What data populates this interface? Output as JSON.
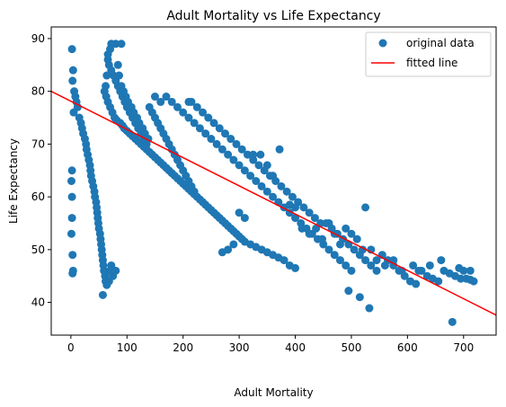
{
  "chart_data": {
    "type": "scatter",
    "title": "Adult Mortality vs Life Expectancy",
    "xlabel": "Adult Mortality",
    "ylabel": "Life Expectancy",
    "xlim": [
      -35,
      758
    ],
    "ylim": [
      33.8,
      92.2
    ],
    "xticks": [
      0,
      100,
      200,
      300,
      400,
      500,
      600,
      700
    ],
    "yticks": [
      40,
      50,
      60,
      70,
      80,
      90
    ],
    "grid": false,
    "legend_position": "top-right",
    "series": [
      {
        "name": "original data",
        "kind": "points",
        "color": "#1f77b4",
        "points": [
          [
            2,
            88
          ],
          [
            4,
            84
          ],
          [
            3,
            82
          ],
          [
            6,
            80
          ],
          [
            8,
            79
          ],
          [
            10,
            78
          ],
          [
            12,
            77
          ],
          [
            5,
            76
          ],
          [
            15,
            75
          ],
          [
            18,
            74
          ],
          [
            20,
            73
          ],
          [
            22,
            72
          ],
          [
            25,
            71
          ],
          [
            27,
            70
          ],
          [
            28,
            69
          ],
          [
            30,
            68
          ],
          [
            32,
            67
          ],
          [
            34,
            66
          ],
          [
            35,
            65
          ],
          [
            36,
            64
          ],
          [
            38,
            63
          ],
          [
            40,
            62
          ],
          [
            42,
            61
          ],
          [
            43,
            60
          ],
          [
            45,
            59
          ],
          [
            46,
            58
          ],
          [
            47,
            57
          ],
          [
            48,
            56
          ],
          [
            49,
            55
          ],
          [
            50,
            54
          ],
          [
            52,
            53
          ],
          [
            53,
            52
          ],
          [
            54,
            51
          ],
          [
            55,
            50
          ],
          [
            56,
            49
          ],
          [
            57,
            48
          ],
          [
            58,
            47
          ],
          [
            59,
            46
          ],
          [
            61,
            45
          ],
          [
            62,
            44
          ],
          [
            64,
            43.3
          ],
          [
            57,
            41.4
          ],
          [
            3,
            49
          ],
          [
            4,
            46
          ],
          [
            2,
            65
          ],
          [
            1,
            63
          ],
          [
            2,
            60
          ],
          [
            2,
            56
          ],
          [
            1,
            53
          ],
          [
            3,
            45.5
          ],
          [
            70,
            46
          ],
          [
            75,
            45
          ],
          [
            72,
            47
          ],
          [
            80,
            46
          ],
          [
            68,
            44
          ],
          [
            90,
            89
          ],
          [
            80,
            89
          ],
          [
            72,
            89
          ],
          [
            70,
            88
          ],
          [
            66,
            86
          ],
          [
            64,
            83
          ],
          [
            62,
            81
          ],
          [
            60,
            80
          ],
          [
            63,
            79
          ],
          [
            66,
            78
          ],
          [
            70,
            77
          ],
          [
            74,
            76
          ],
          [
            78,
            75
          ],
          [
            82,
            74.5
          ],
          [
            88,
            74
          ],
          [
            92,
            73.5
          ],
          [
            95,
            73
          ],
          [
            100,
            72.5
          ],
          [
            105,
            72
          ],
          [
            110,
            71.5
          ],
          [
            115,
            71
          ],
          [
            120,
            70.5
          ],
          [
            125,
            70
          ],
          [
            130,
            69.5
          ],
          [
            135,
            69
          ],
          [
            140,
            68.5
          ],
          [
            145,
            68
          ],
          [
            150,
            67.5
          ],
          [
            155,
            67
          ],
          [
            160,
            66.5
          ],
          [
            165,
            66
          ],
          [
            170,
            65.5
          ],
          [
            175,
            65
          ],
          [
            180,
            64.5
          ],
          [
            185,
            64
          ],
          [
            190,
            63.5
          ],
          [
            195,
            63
          ],
          [
            200,
            62.5
          ],
          [
            205,
            62
          ],
          [
            210,
            61.5
          ],
          [
            215,
            61
          ],
          [
            220,
            60.5
          ],
          [
            225,
            60
          ],
          [
            230,
            59.5
          ],
          [
            235,
            59
          ],
          [
            240,
            58.5
          ],
          [
            245,
            58
          ],
          [
            250,
            57.5
          ],
          [
            255,
            57
          ],
          [
            260,
            56.5
          ],
          [
            265,
            56
          ],
          [
            270,
            55.5
          ],
          [
            275,
            55
          ],
          [
            280,
            54.5
          ],
          [
            285,
            54
          ],
          [
            290,
            53.5
          ],
          [
            295,
            53
          ],
          [
            300,
            52.5
          ],
          [
            305,
            52
          ],
          [
            310,
            51.5
          ],
          [
            320,
            51
          ],
          [
            330,
            50.5
          ],
          [
            340,
            50
          ],
          [
            350,
            49.5
          ],
          [
            360,
            49
          ],
          [
            370,
            48.5
          ],
          [
            380,
            48
          ],
          [
            390,
            47
          ],
          [
            400,
            46.5
          ],
          [
            150,
            79
          ],
          [
            160,
            78
          ],
          [
            170,
            79
          ],
          [
            180,
            78
          ],
          [
            190,
            77
          ],
          [
            200,
            76
          ],
          [
            210,
            75
          ],
          [
            220,
            74
          ],
          [
            230,
            73
          ],
          [
            240,
            72
          ],
          [
            250,
            71
          ],
          [
            260,
            70
          ],
          [
            270,
            69
          ],
          [
            280,
            68
          ],
          [
            290,
            67
          ],
          [
            300,
            66
          ],
          [
            310,
            65
          ],
          [
            320,
            64
          ],
          [
            330,
            63
          ],
          [
            340,
            62
          ],
          [
            350,
            61
          ],
          [
            360,
            60
          ],
          [
            370,
            59
          ],
          [
            380,
            58
          ],
          [
            390,
            57
          ],
          [
            400,
            56
          ],
          [
            410,
            55
          ],
          [
            420,
            54
          ],
          [
            430,
            53
          ],
          [
            440,
            52
          ],
          [
            450,
            51
          ],
          [
            460,
            50
          ],
          [
            470,
            49
          ],
          [
            480,
            48
          ],
          [
            490,
            47
          ],
          [
            500,
            46
          ],
          [
            210,
            78
          ],
          [
            215,
            78
          ],
          [
            225,
            77
          ],
          [
            235,
            76
          ],
          [
            245,
            75
          ],
          [
            255,
            74
          ],
          [
            265,
            73
          ],
          [
            275,
            72
          ],
          [
            285,
            71
          ],
          [
            295,
            70
          ],
          [
            305,
            69
          ],
          [
            315,
            68
          ],
          [
            325,
            67
          ],
          [
            335,
            66
          ],
          [
            345,
            65
          ],
          [
            355,
            64
          ],
          [
            365,
            63
          ],
          [
            375,
            62
          ],
          [
            385,
            61
          ],
          [
            395,
            60
          ],
          [
            405,
            59
          ],
          [
            415,
            58
          ],
          [
            425,
            57
          ],
          [
            435,
            56
          ],
          [
            445,
            55
          ],
          [
            455,
            55
          ],
          [
            465,
            54
          ],
          [
            475,
            53
          ],
          [
            485,
            52
          ],
          [
            495,
            51
          ],
          [
            505,
            50
          ],
          [
            515,
            49
          ],
          [
            525,
            48
          ],
          [
            535,
            47
          ],
          [
            545,
            46
          ],
          [
            555,
            49
          ],
          [
            565,
            48
          ],
          [
            575,
            47
          ],
          [
            585,
            46
          ],
          [
            595,
            45
          ],
          [
            605,
            44
          ],
          [
            615,
            43.5
          ],
          [
            625,
            46
          ],
          [
            635,
            45
          ],
          [
            645,
            44.5
          ],
          [
            655,
            44
          ],
          [
            665,
            46
          ],
          [
            675,
            45.5
          ],
          [
            685,
            45
          ],
          [
            695,
            44.5
          ],
          [
            705,
            44.5
          ],
          [
            712,
            44.3
          ],
          [
            718,
            44
          ],
          [
            712,
            46
          ],
          [
            700,
            46
          ],
          [
            692,
            46.5
          ],
          [
            680,
            36.3
          ],
          [
            532,
            38.9
          ],
          [
            515,
            41
          ],
          [
            495,
            42.2
          ],
          [
            525,
            58
          ],
          [
            372,
            69
          ],
          [
            390,
            58.5
          ],
          [
            400,
            58
          ],
          [
            412,
            54
          ],
          [
            425,
            53
          ],
          [
            437,
            54
          ],
          [
            448,
            52
          ],
          [
            460,
            55
          ],
          [
            470,
            53
          ],
          [
            480,
            51
          ],
          [
            490,
            54
          ],
          [
            500,
            53
          ],
          [
            510,
            52
          ],
          [
            520,
            50
          ],
          [
            535,
            50
          ],
          [
            545,
            48
          ],
          [
            560,
            47
          ],
          [
            575,
            48
          ],
          [
            590,
            46
          ],
          [
            610,
            47
          ],
          [
            620,
            46
          ],
          [
            640,
            47
          ],
          [
            660,
            48
          ],
          [
            325,
            68
          ],
          [
            338,
            68
          ],
          [
            350,
            66
          ],
          [
            360,
            64
          ],
          [
            300,
            57
          ],
          [
            310,
            56
          ],
          [
            270,
            49.5
          ],
          [
            280,
            50
          ],
          [
            290,
            51
          ],
          [
            140,
            77
          ],
          [
            145,
            76
          ],
          [
            150,
            75
          ],
          [
            155,
            74
          ],
          [
            160,
            73
          ],
          [
            165,
            72
          ],
          [
            170,
            71
          ],
          [
            175,
            70
          ],
          [
            180,
            69
          ],
          [
            185,
            68
          ],
          [
            190,
            67
          ],
          [
            195,
            66
          ],
          [
            200,
            65
          ],
          [
            205,
            64
          ],
          [
            210,
            63
          ],
          [
            215,
            62
          ],
          [
            220,
            61
          ],
          [
            100,
            77
          ],
          [
            105,
            76
          ],
          [
            110,
            75
          ],
          [
            115,
            74
          ],
          [
            120,
            73
          ],
          [
            125,
            72
          ],
          [
            130,
            71
          ],
          [
            135,
            70
          ],
          [
            96,
            78
          ],
          [
            92,
            79
          ],
          [
            88,
            80
          ],
          [
            84,
            81
          ],
          [
            80,
            82
          ],
          [
            76,
            83
          ],
          [
            72,
            84
          ],
          [
            68,
            85
          ],
          [
            66,
            87
          ],
          [
            84,
            85
          ],
          [
            86,
            83
          ],
          [
            90,
            81
          ],
          [
            94,
            80
          ],
          [
            98,
            79
          ],
          [
            102,
            78
          ],
          [
            108,
            77
          ],
          [
            112,
            76
          ],
          [
            118,
            75
          ],
          [
            122,
            74
          ],
          [
            128,
            73
          ],
          [
            132,
            72
          ],
          [
            138,
            71
          ]
        ]
      },
      {
        "name": "fitted line",
        "kind": "line",
        "color": "#ff0000",
        "x": [
          -35,
          758
        ],
        "y": [
          80.0,
          37.6
        ]
      }
    ]
  }
}
